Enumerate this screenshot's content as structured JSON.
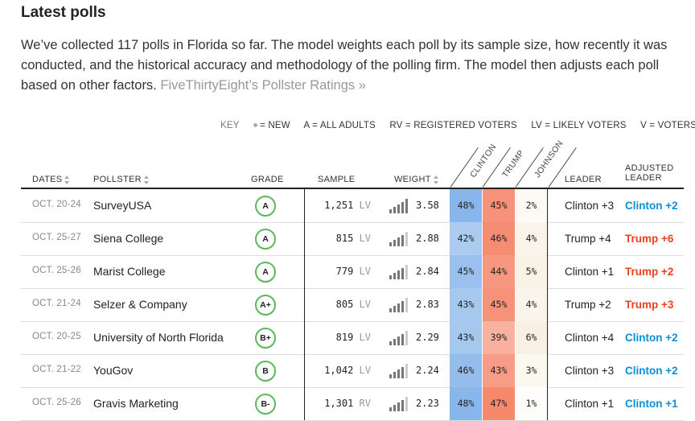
{
  "title": "Latest polls",
  "intro": {
    "text": "We’ve collected 117 polls in Florida so far. The model weights each poll by its sample size, how recently it was conducted, and the historical accuracy and methodology of the polling firm. The model then adjusts each poll based on other factors. ",
    "link": "FiveThirtyEight’s Pollster Ratings »"
  },
  "key": {
    "label": "KEY",
    "new": "= NEW",
    "a": "A = ALL ADULTS",
    "rv": "RV = REGISTERED VOTERS",
    "lv": "LV = LIKELY VOTERS",
    "v": "V = VOTERS"
  },
  "columns": {
    "dates": "DATES",
    "pollster": "POLLSTER",
    "grade": "GRADE",
    "sample": "SAMPLE",
    "weight": "WEIGHT",
    "clinton": "CLINTON",
    "trump": "TRUMP",
    "johnson": "JOHNSON",
    "leader": "LEADER",
    "adjusted_line1": "ADJUSTED",
    "adjusted_line2": "LEADER"
  },
  "colors": {
    "dem": "#0b8fd6",
    "rep": "#ee3f1f",
    "grade_ring": "#5cb85c"
  },
  "rows": [
    {
      "dates": "OCT. 20-24",
      "pollster": "SurveyUSA",
      "grade": "A",
      "sample": "1,251",
      "pop": "LV",
      "weight": "3.58",
      "weight_frac": 0.95,
      "clinton": "48%",
      "trump": "45%",
      "johnson": "2%",
      "leader": "Clinton +3",
      "adjusted": "Clinton +2",
      "adj_party": "dem"
    },
    {
      "dates": "OCT. 25-27",
      "pollster": "Siena College",
      "grade": "A",
      "sample": "815",
      "pop": "LV",
      "weight": "2.88",
      "weight_frac": 0.8,
      "clinton": "42%",
      "trump": "46%",
      "johnson": "4%",
      "leader": "Trump +4",
      "adjusted": "Trump +6",
      "adj_party": "rep"
    },
    {
      "dates": "OCT. 25-26",
      "pollster": "Marist College",
      "grade": "A",
      "sample": "779",
      "pop": "LV",
      "weight": "2.84",
      "weight_frac": 0.8,
      "clinton": "45%",
      "trump": "44%",
      "johnson": "5%",
      "leader": "Clinton +1",
      "adjusted": "Trump +2",
      "adj_party": "rep"
    },
    {
      "dates": "OCT. 21-24",
      "pollster": "Selzer & Company",
      "grade": "A+",
      "sample": "805",
      "pop": "LV",
      "weight": "2.83",
      "weight_frac": 0.8,
      "clinton": "43%",
      "trump": "45%",
      "johnson": "4%",
      "leader": "Trump +2",
      "adjusted": "Trump +3",
      "adj_party": "rep"
    },
    {
      "dates": "OCT. 20-25",
      "pollster": "University of North Florida",
      "grade": "B+",
      "sample": "819",
      "pop": "LV",
      "weight": "2.29",
      "weight_frac": 0.7,
      "clinton": "43%",
      "trump": "39%",
      "johnson": "6%",
      "leader": "Clinton +4",
      "adjusted": "Clinton +2",
      "adj_party": "dem"
    },
    {
      "dates": "OCT. 21-22",
      "pollster": "YouGov",
      "grade": "B",
      "sample": "1,042",
      "pop": "LV",
      "weight": "2.24",
      "weight_frac": 0.7,
      "clinton": "46%",
      "trump": "43%",
      "johnson": "3%",
      "leader": "Clinton +3",
      "adjusted": "Clinton +2",
      "adj_party": "dem"
    },
    {
      "dates": "OCT. 25-26",
      "pollster": "Gravis Marketing",
      "grade": "B-",
      "sample": "1,301",
      "pop": "RV",
      "weight": "2.23",
      "weight_frac": 0.7,
      "clinton": "48%",
      "trump": "47%",
      "johnson": "1%",
      "leader": "Clinton +1",
      "adjusted": "Clinton +1",
      "adj_party": "dem"
    }
  ]
}
